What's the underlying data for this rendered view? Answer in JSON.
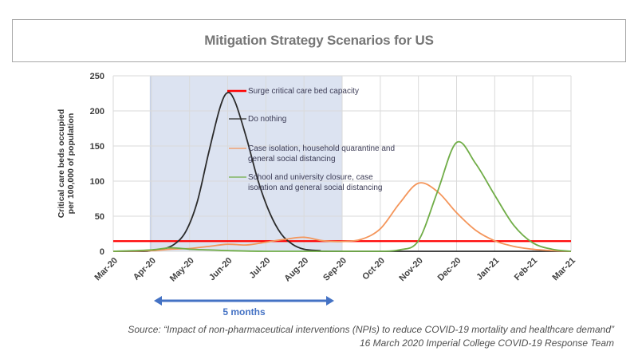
{
  "title": "Mitigation Strategy Scenarios for US",
  "annotation": {
    "duration_label": "5 months",
    "shaded_period": [
      "Apr-20",
      "Sep-20"
    ]
  },
  "source": {
    "line1": "Source: “Impact of non-pharmaceutical  interventions (NPIs) to reduce COVID-19 mortality and healthcare demand”",
    "line2": "16 March 2020 Imperial College COVID-19 Response Team"
  },
  "chart_data": {
    "type": "line",
    "title": "Mitigation Strategy Scenarios for US",
    "xlabel": "",
    "ylabel_line1": "Critical care beds occupied",
    "ylabel_line2": "per 100,000 of population",
    "ylim": [
      0,
      250
    ],
    "yticks": [
      0,
      50,
      100,
      150,
      200,
      250
    ],
    "grid": true,
    "legend_position": "top-center",
    "x": [
      "Mar-20",
      "Apr-20",
      "May-20",
      "Jun-20",
      "Jul-20",
      "Aug-20",
      "Sep-20",
      "Oct-20",
      "Nov-20",
      "Dec-20",
      "Jan-21",
      "Feb-21",
      "Mar-21"
    ],
    "series": [
      {
        "name": "Surge critical care bed capacity",
        "color": "#ff0000",
        "kind": "constant",
        "value": 14.5
      },
      {
        "name": "Do nothing",
        "color": "#2b2b2b",
        "x_months": [
          0,
          0.8,
          1,
          1.3,
          1.6,
          1.9,
          2.2,
          2.5,
          2.8,
          3.0,
          3.2,
          3.5,
          3.8,
          4.1,
          4.4,
          4.7,
          5.0,
          5.4,
          6.0,
          12
        ],
        "values": [
          0,
          0,
          1,
          3,
          10,
          28,
          70,
          140,
          205,
          226,
          212,
          160,
          100,
          55,
          25,
          10,
          3,
          1,
          0,
          0
        ]
      },
      {
        "name": "Case isolation, household quarantine and general social distancing",
        "color": "#f4955a",
        "x_months": [
          0,
          1,
          1.5,
          2,
          2.5,
          3,
          3.5,
          4,
          4.5,
          5,
          5.5,
          6,
          6.5,
          7,
          7.5,
          8,
          8.5,
          9,
          9.5,
          10,
          10.5,
          11,
          11.5,
          12
        ],
        "values": [
          0,
          1,
          3,
          4,
          7,
          10,
          9,
          13,
          17,
          20,
          15,
          14,
          17,
          32,
          68,
          97,
          85,
          55,
          30,
          15,
          7,
          3,
          1,
          0
        ]
      },
      {
        "name": "School and university closure, case isolation and general social distancing",
        "color": "#70ad47",
        "x_months": [
          0,
          1,
          1.5,
          2,
          2.5,
          3,
          4,
          6,
          7,
          7.5,
          8,
          8.5,
          9,
          9.5,
          10,
          10.5,
          11,
          11.5,
          12
        ],
        "values": [
          0,
          2,
          5,
          3,
          2,
          1,
          0,
          0,
          0,
          2,
          15,
          85,
          155,
          125,
          80,
          37,
          12,
          3,
          0
        ]
      }
    ]
  }
}
